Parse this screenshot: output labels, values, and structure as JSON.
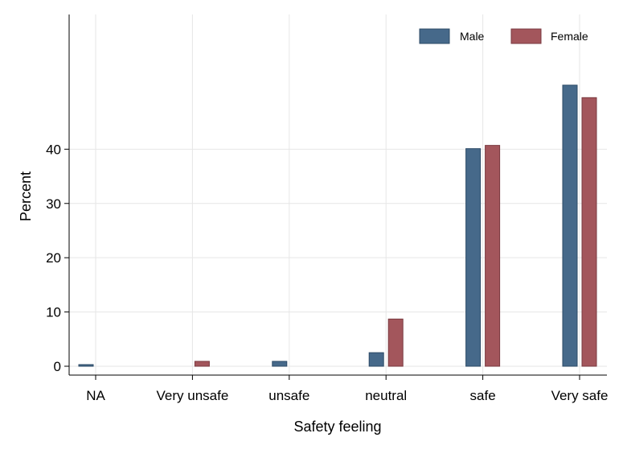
{
  "chart_data": {
    "type": "bar",
    "title": "",
    "xlabel": "Safety feeling",
    "ylabel": "Percent",
    "categories": [
      "NA",
      "Very unsafe",
      "unsafe",
      "neutral",
      "safe",
      "Very safe"
    ],
    "series": [
      {
        "name": "Male",
        "color": "#46698a",
        "values": [
          0.3,
          0.0,
          0.9,
          2.5,
          40.1,
          51.8
        ]
      },
      {
        "name": "Female",
        "color": "#a3565c",
        "values": [
          0.0,
          0.9,
          0.0,
          8.7,
          40.7,
          49.5
        ]
      }
    ],
    "yticks": [
      0,
      10,
      20,
      30,
      40
    ],
    "ylim": [
      0,
      58
    ],
    "grid": true,
    "legend_position": "top-right"
  }
}
